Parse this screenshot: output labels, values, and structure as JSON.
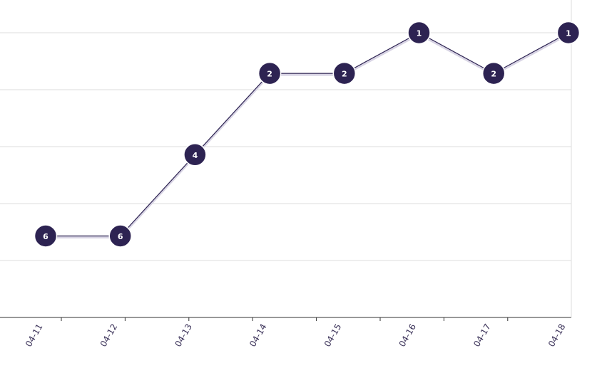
{
  "chart_data": {
    "type": "line",
    "title": "",
    "xlabel": "",
    "ylabel": "",
    "categories": [
      "04-11",
      "04-12",
      "04-13",
      "04-14",
      "04-15",
      "04-16",
      "04-17",
      "04-18"
    ],
    "series": [
      {
        "values": [
          6,
          6,
          4,
          2,
          2,
          1,
          2,
          1
        ]
      }
    ],
    "point_labels": [
      "6",
      "6",
      "4",
      "2",
      "2",
      "1",
      "2",
      "1"
    ],
    "y_axis": {
      "reversed": true,
      "ylim": [
        8,
        0.5
      ],
      "tick_labels_visible": false
    },
    "grid": true,
    "colors": {
      "series": "#2d2352",
      "grid": "#dcdcdc",
      "axis": "#333333"
    }
  }
}
